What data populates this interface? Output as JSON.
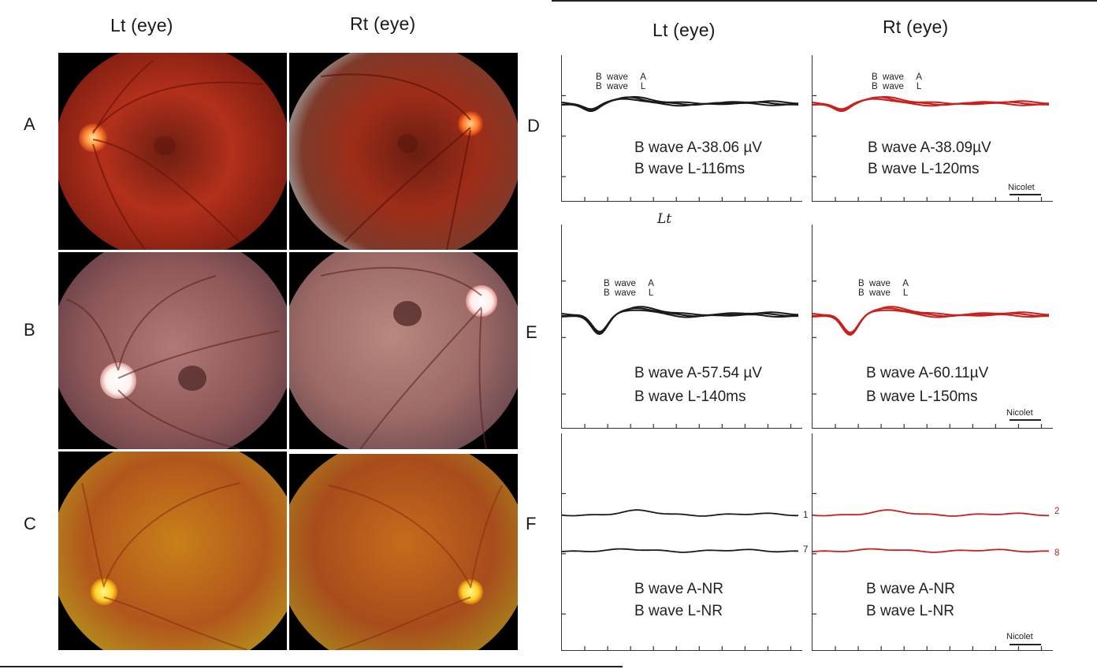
{
  "headers": {
    "fundus_left": "Lt (eye)",
    "fundus_right": "Rt (eye)",
    "erg_left": "Lt (eye)",
    "erg_right": "Rt (eye)"
  },
  "row_letters": {
    "A": "A",
    "B": "B",
    "C": "C",
    "D": "D",
    "E": "E",
    "F": "F"
  },
  "fundus_images": {
    "A_left": {
      "bg": "#b3301b",
      "disc_side": "left",
      "tone": "red"
    },
    "A_right": {
      "bg": "#9e2d18",
      "disc_side": "right",
      "tone": "red"
    },
    "B_left": {
      "bg": "#8f5858",
      "disc_side": "left",
      "tone": "pale"
    },
    "B_right": {
      "bg": "#9d6a66",
      "disc_side": "right",
      "tone": "pale"
    },
    "C_left": {
      "bg": "#c9801a",
      "disc_side": "left",
      "tone": "yellow"
    },
    "C_right": {
      "bg": "#c56c1c",
      "disc_side": "right",
      "tone": "yellow"
    }
  },
  "erg": {
    "wave_label_top": "B  wave     A",
    "wave_label_bottom": "B  wave     L",
    "scale_label": "Nicolet",
    "D_left": {
      "amplitude": "B wave A-38.06 µV",
      "latency": "B wave L-116ms",
      "trace_color": "#1a1a1a",
      "b_wave_uV": 38.06,
      "latency_ms": 116
    },
    "D_right": {
      "amplitude": "B wave A-38.09µV",
      "latency": "B wave L-120ms",
      "trace_color": "#c8201c",
      "b_wave_uV": 38.09,
      "latency_ms": 120
    },
    "E_left": {
      "amplitude": "B wave A-57.54 µV",
      "latency": "B wave L-140ms",
      "trace_color": "#1a1a1a",
      "b_wave_uV": 57.54,
      "latency_ms": 140
    },
    "E_right": {
      "amplitude": "B wave A-60.11µV",
      "latency": "B wave L-150ms",
      "trace_color": "#c8201c",
      "b_wave_uV": 60.11,
      "latency_ms": 150
    },
    "F_left": {
      "amplitude": "B wave A-NR",
      "latency": "B wave L-NR",
      "trace_color": "#1a1a1a",
      "channel_top": "1",
      "channel_bottom": "7"
    },
    "F_right": {
      "amplitude": "B wave A-NR",
      "latency": "B wave L-NR",
      "trace_color": "#c8201c",
      "channel_top": "2",
      "channel_bottom": "8"
    }
  },
  "handwritten_note": "Lt"
}
